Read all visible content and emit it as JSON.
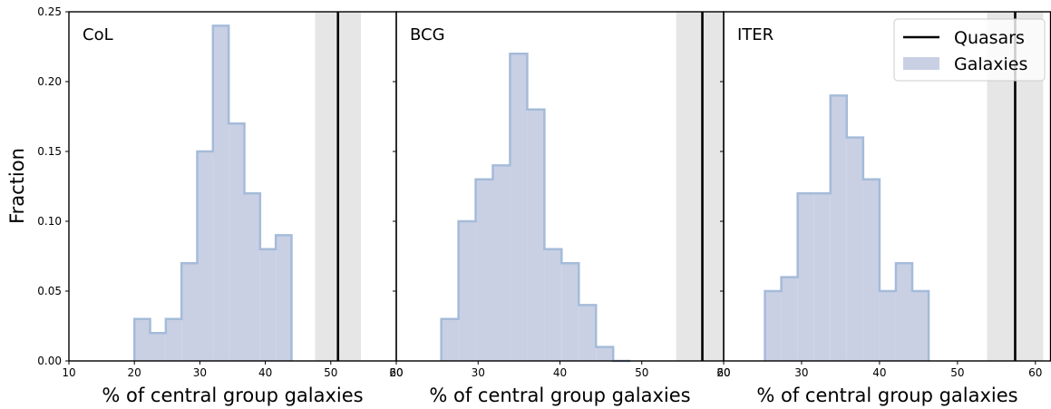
{
  "chart_data": [
    {
      "type": "histogram",
      "panel_label": "CoL",
      "xlabel": "% of central group galaxies",
      "ylabel": "Fraction",
      "xlim": [
        10,
        60
      ],
      "ylim": [
        0,
        0.25
      ],
      "xticks": [
        "10",
        "20",
        "30",
        "40",
        "50",
        "60"
      ],
      "xtick_values": [
        10,
        20,
        30,
        40,
        50,
        60
      ],
      "yticks": [
        "0.00",
        "0.05",
        "0.10",
        "0.15",
        "0.20",
        "0.25"
      ],
      "ytick_values": [
        0,
        0.05,
        0.1,
        0.15,
        0.2,
        0.25
      ],
      "bin_edges": [
        20,
        22.4,
        24.8,
        27.2,
        29.6,
        32.0,
        34.4,
        36.8,
        39.2,
        41.6,
        44.0
      ],
      "values": [
        0.03,
        0.02,
        0.03,
        0.07,
        0.15,
        0.24,
        0.17,
        0.12,
        0.08,
        0.09
      ],
      "quasar_value": 51.1,
      "quasar_band": [
        47.6,
        54.6
      ]
    },
    {
      "type": "histogram",
      "panel_label": "BCG",
      "xlabel": "% of central group galaxies",
      "xlim": [
        20,
        60
      ],
      "ylim": [
        0,
        0.25
      ],
      "xticks": [
        "20",
        "30",
        "40",
        "50",
        "60"
      ],
      "xtick_values": [
        20,
        30,
        40,
        50,
        60
      ],
      "bin_edges": [
        25.5,
        27.6,
        29.7,
        31.8,
        33.9,
        36.0,
        38.1,
        40.2,
        42.3,
        44.4,
        46.5,
        48.6
      ],
      "values": [
        0.03,
        0.1,
        0.13,
        0.14,
        0.22,
        0.18,
        0.08,
        0.07,
        0.04,
        0.01,
        0.0
      ],
      "quasar_value": 57.4,
      "quasar_band": [
        54.2,
        61.7
      ]
    },
    {
      "type": "histogram",
      "panel_label": "ITER",
      "xlabel": "% of central group galaxies",
      "xlim": [
        20,
        62
      ],
      "ylim": [
        0,
        0.25
      ],
      "xticks": [
        "20",
        "30",
        "40",
        "50",
        "60"
      ],
      "xtick_values": [
        20,
        30,
        40,
        50,
        60
      ],
      "bin_edges": [
        25.3,
        27.4,
        29.5,
        31.6,
        33.7,
        35.8,
        37.9,
        40.0,
        42.1,
        44.2,
        46.3
      ],
      "values": [
        0.05,
        0.06,
        0.12,
        0.12,
        0.19,
        0.16,
        0.13,
        0.05,
        0.07,
        0.05
      ],
      "quasar_value": 57.4,
      "quasar_band": [
        53.8,
        61.0
      ],
      "legend": {
        "position": "top-right",
        "entries": [
          {
            "label": "Quasars",
            "style": "line"
          },
          {
            "label": "Galaxies",
            "style": "patch"
          }
        ]
      }
    }
  ],
  "colors": {
    "hist_fill": "#c9d0e4",
    "hist_edge": "#a5bbd9",
    "quasar_line": "#000000",
    "band": "#e6e6e6"
  }
}
